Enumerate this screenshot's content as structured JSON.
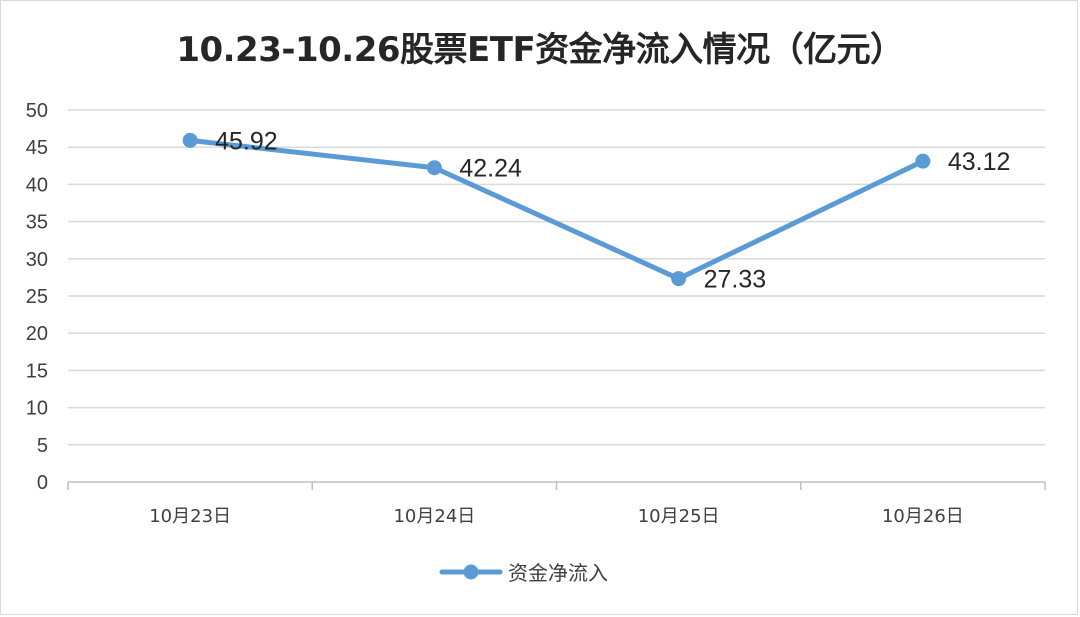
{
  "chart_data": {
    "type": "line",
    "title": "10.23-10.26股票ETF资金净流入情况（亿元）",
    "categories": [
      "10月23日",
      "10月24日",
      "10月25日",
      "10月26日"
    ],
    "series": [
      {
        "name": "资金净流入",
        "values": [
          45.92,
          42.24,
          27.33,
          43.12
        ],
        "color": "#5b9bd5"
      }
    ],
    "ylim": [
      0,
      50
    ],
    "yticks": [
      0,
      5,
      10,
      15,
      20,
      25,
      30,
      35,
      40,
      45,
      50
    ],
    "grid": true,
    "legend": "bottom"
  }
}
